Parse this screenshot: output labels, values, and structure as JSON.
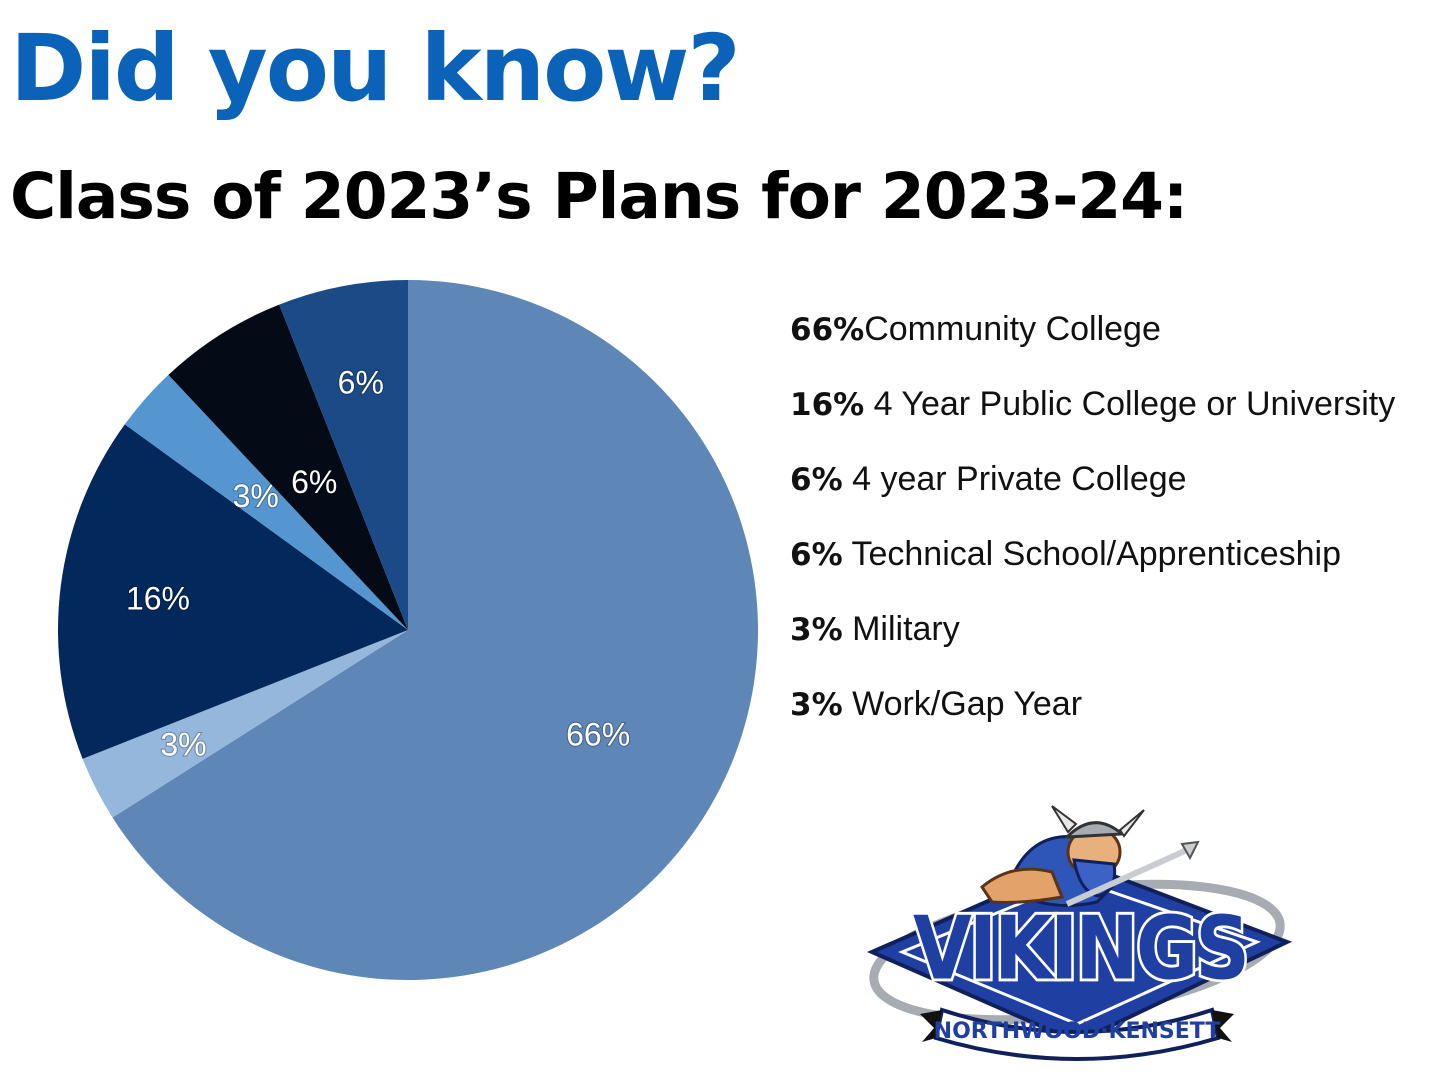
{
  "headline": "Did you know?",
  "subheadline": "Class of 2023’s Plans for 2023-24:",
  "chart_data": {
    "type": "pie",
    "title": "Class of 2023’s Plans for 2023-24:",
    "unit": "%",
    "slices": [
      {
        "label": "Community College",
        "value": 66,
        "color": "#5e86b7"
      },
      {
        "label": "Work/Gap Year",
        "value": 3,
        "color": "#95b7dc"
      },
      {
        "label": "4 Year Public College or University",
        "value": 16,
        "color": "#03285c"
      },
      {
        "label": "Military",
        "value": 3,
        "color": "#5596d0"
      },
      {
        "label": "4 year Private College",
        "value": 6,
        "color": "#040b17"
      },
      {
        "label": "Technical School/Apprenticeship",
        "value": 6,
        "color": "#1c4a87"
      }
    ],
    "slice_labels": [
      "66%",
      "3%",
      "16%",
      "3%",
      "6%",
      "6%"
    ]
  },
  "legend": [
    {
      "pct": "66%",
      "text": "Community College"
    },
    {
      "pct": "16%",
      "text": " 4 Year Public College or University"
    },
    {
      "pct": "6%",
      "text": " 4 year Private College"
    },
    {
      "pct": "6%",
      "text": " Technical School/Apprenticeship"
    },
    {
      "pct": "3%",
      "text": " Military"
    },
    {
      "pct": "3%",
      "text": " Work/Gap Year"
    }
  ],
  "logo": {
    "wordmark": "VIKINGS",
    "banner": "NORTHWOOD·KENSETT",
    "colors": {
      "blue": "#1f3fa3",
      "dark": "#10205a",
      "silver": "#a7acb3"
    }
  }
}
